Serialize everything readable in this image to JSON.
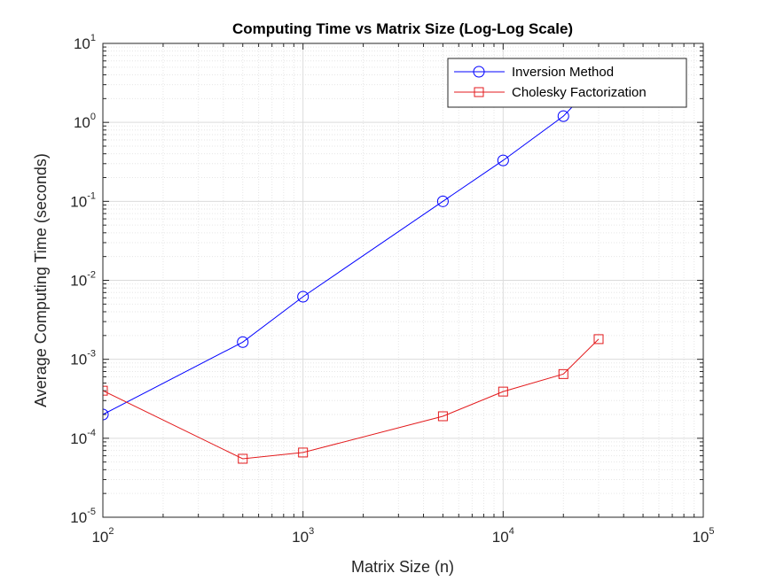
{
  "chart_data": {
    "type": "line",
    "title": "Computing Time vs Matrix Size (Log-Log Scale)",
    "xlabel": "Matrix Size (n)",
    "ylabel": "Average Computing Time (seconds)",
    "xscale": "log",
    "yscale": "log",
    "xlim": [
      100,
      100000
    ],
    "ylim": [
      1e-05,
      10
    ],
    "grid": true,
    "minor_grid": true,
    "legend_position": "top-right",
    "x_ticks": [
      {
        "base": "10",
        "exp": "2"
      },
      {
        "base": "10",
        "exp": "3"
      },
      {
        "base": "10",
        "exp": "4"
      },
      {
        "base": "10",
        "exp": "5"
      }
    ],
    "y_ticks": [
      {
        "base": "10",
        "exp": "-5"
      },
      {
        "base": "10",
        "exp": "-4"
      },
      {
        "base": "10",
        "exp": "-3"
      },
      {
        "base": "10",
        "exp": "-2"
      },
      {
        "base": "10",
        "exp": "-1"
      },
      {
        "base": "10",
        "exp": "0"
      },
      {
        "base": "10",
        "exp": "1"
      }
    ],
    "series": [
      {
        "name": "Inversion Method",
        "color": "#0000ff",
        "marker": "circle",
        "x": [
          100,
          500,
          1000,
          5000,
          10000,
          20000,
          30000
        ],
        "y": [
          0.0002,
          0.00165,
          0.0062,
          0.1,
          0.33,
          1.2,
          3.5
        ]
      },
      {
        "name": "Cholesky Factorization",
        "color": "#e31a1c",
        "marker": "square",
        "x": [
          100,
          500,
          1000,
          5000,
          10000,
          20000,
          30000
        ],
        "y": [
          0.0004,
          5.5e-05,
          6.6e-05,
          0.00019,
          0.00039,
          0.00065,
          0.0018
        ]
      }
    ]
  }
}
